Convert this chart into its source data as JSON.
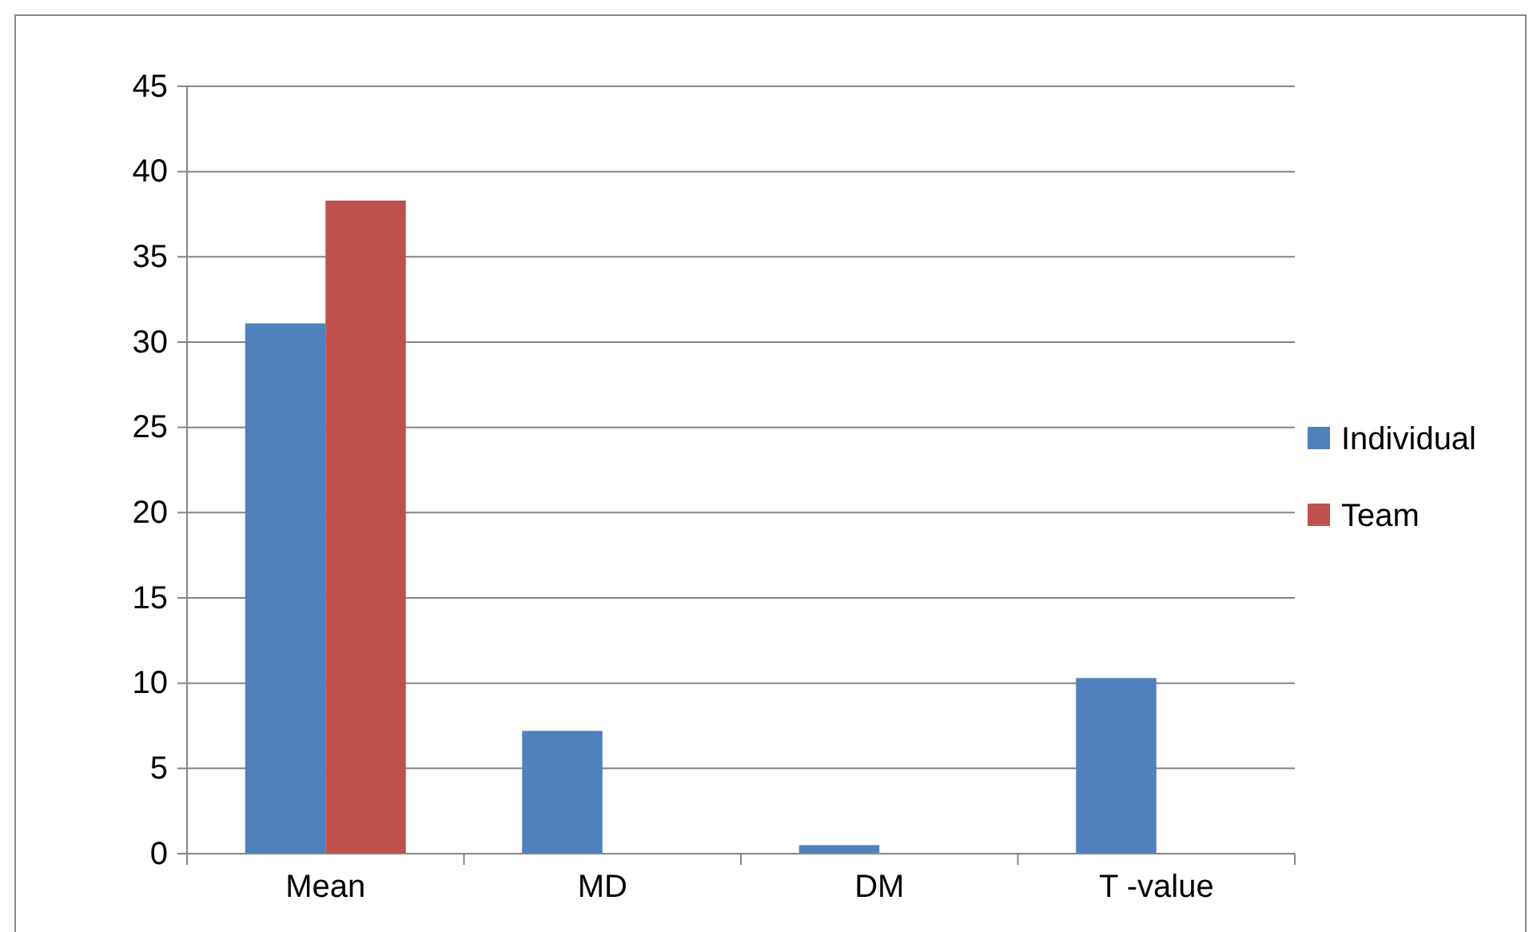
{
  "chart_data": {
    "type": "bar",
    "categories": [
      "Mean",
      "MD",
      "DM",
      "T -value"
    ],
    "series": [
      {
        "name": "Individual",
        "color": "#4f81bd",
        "values": [
          31.1,
          7.2,
          0.5,
          10.3
        ]
      },
      {
        "name": "Team",
        "color": "#c0504d",
        "values": [
          38.3,
          null,
          null,
          null
        ]
      }
    ],
    "ylim": [
      0,
      45
    ],
    "yticks": [
      0,
      5,
      10,
      15,
      20,
      25,
      30,
      35,
      40,
      45
    ],
    "grid": "y",
    "legend": "right"
  }
}
